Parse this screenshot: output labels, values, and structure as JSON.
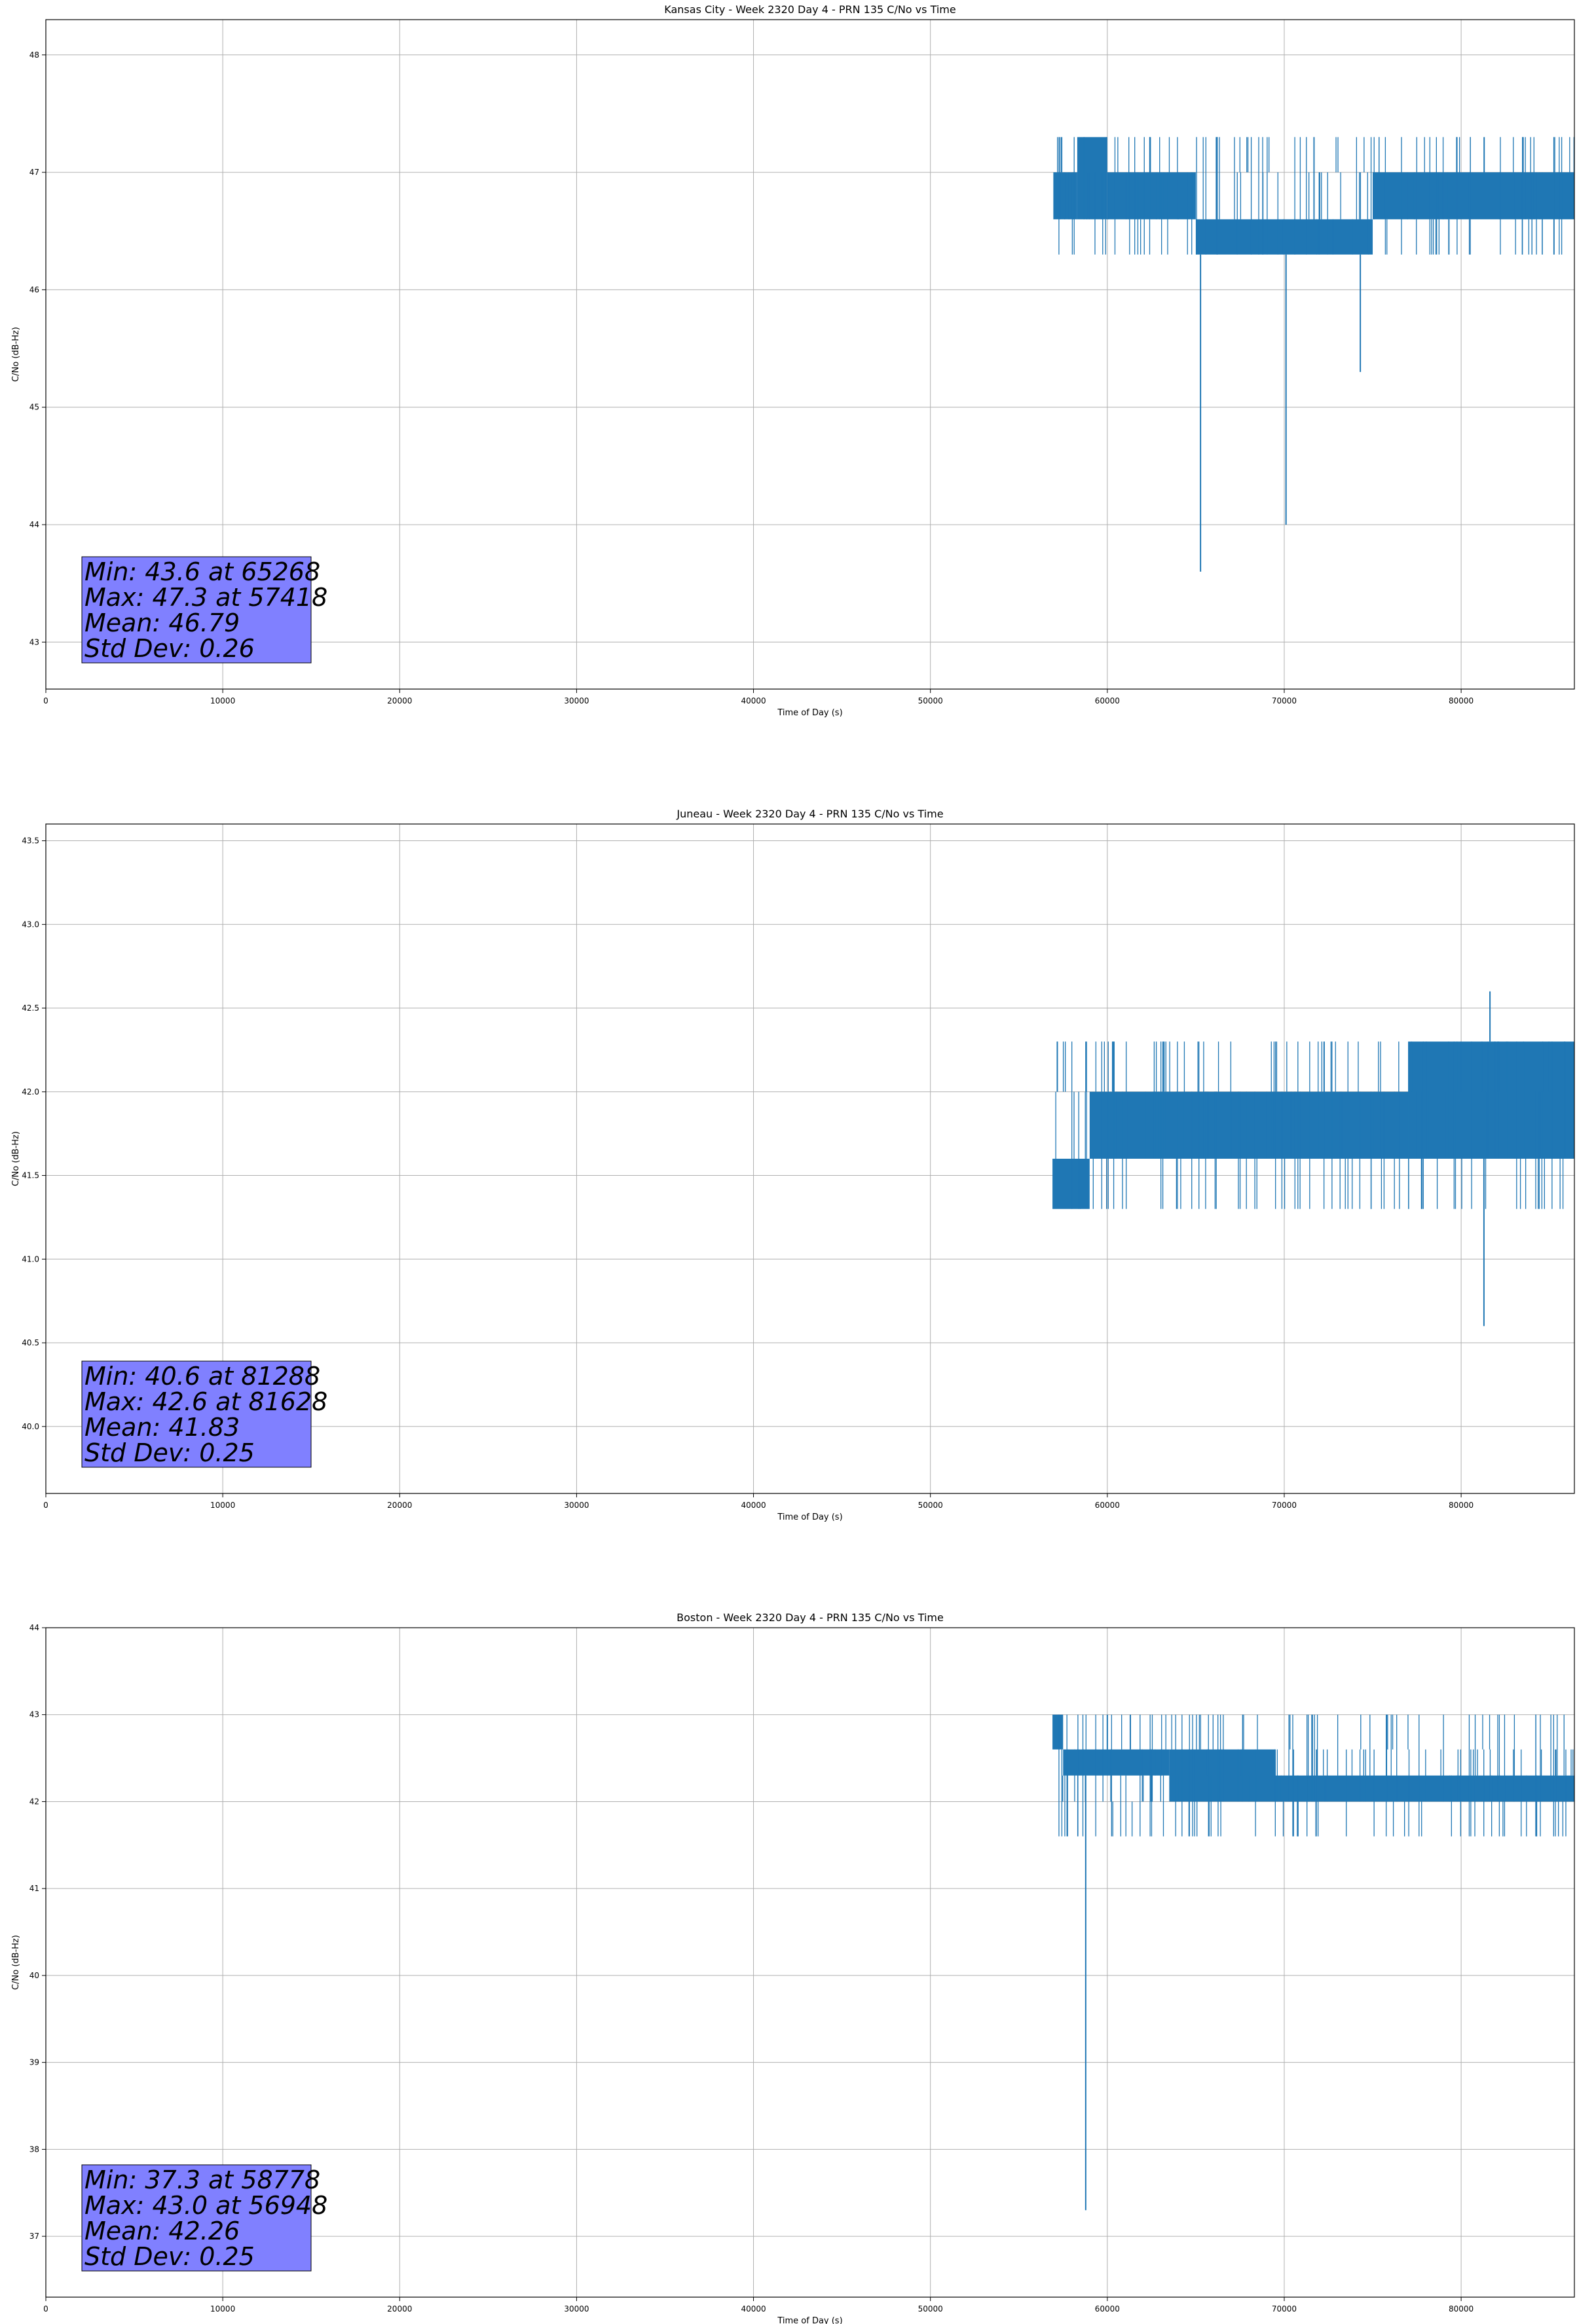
{
  "colors": {
    "series": "#1f77b4",
    "grid": "#b0b0b0",
    "stats_box": "#8080ff",
    "stats_border": "#000000"
  },
  "chart_data": [
    {
      "type": "line",
      "title": "Kansas City - Week 2320 Day 4 - PRN 135 C/No vs Time",
      "xlabel": "Time of Day (s)",
      "ylabel": "C/No (dB-Hz)",
      "xlim": [
        0,
        86400
      ],
      "ylim": [
        42.6,
        48.3
      ],
      "xticks": [
        0,
        10000,
        20000,
        30000,
        40000,
        50000,
        60000,
        70000,
        80000
      ],
      "xtick_labels": [
        "0",
        "10000",
        "20000",
        "30000",
        "40000",
        "50000",
        "60000",
        "70000",
        "80000"
      ],
      "yticks": [
        43,
        44,
        45,
        46,
        47,
        48
      ],
      "ytick_labels": [
        "43",
        "44",
        "45",
        "46",
        "47",
        "48"
      ],
      "grid": true,
      "series_start": 56948,
      "levels": [
        46.3,
        46.6,
        47.0,
        47.3
      ],
      "segments": [
        {
          "x": [
            56948,
            58300
          ],
          "upper": 47.0,
          "lower": 46.6
        },
        {
          "x": [
            58300,
            60000
          ],
          "upper": 47.3,
          "lower": 46.6
        },
        {
          "x": [
            60000,
            65000
          ],
          "upper": 47.0,
          "lower": 46.6
        },
        {
          "x": [
            65000,
            75000
          ],
          "upper": 46.6,
          "lower": 46.3
        },
        {
          "x": [
            75000,
            86400
          ],
          "upper": 47.0,
          "lower": 46.6
        }
      ],
      "spikes": [
        {
          "x": 57418,
          "y": 47.3
        },
        {
          "x": 65268,
          "y": 43.6
        },
        {
          "x": 70100,
          "y": 44.0
        },
        {
          "x": 74300,
          "y": 45.3
        },
        {
          "x": 81300,
          "y": 47.3
        },
        {
          "x": 83500,
          "y": 47.3
        }
      ],
      "stats": [
        "Min: 43.6 at 65268",
        "Max: 47.3 at 57418",
        "Mean: 46.79",
        "Std Dev: 0.26"
      ]
    },
    {
      "type": "line",
      "title": "Juneau - Week 2320 Day 4 - PRN 135 C/No vs Time",
      "xlabel": "Time of Day (s)",
      "ylabel": "C/No (dB-Hz)",
      "xlim": [
        0,
        86400
      ],
      "ylim": [
        39.6,
        43.6
      ],
      "xticks": [
        0,
        10000,
        20000,
        30000,
        40000,
        50000,
        60000,
        70000,
        80000
      ],
      "xtick_labels": [
        "0",
        "10000",
        "20000",
        "30000",
        "40000",
        "50000",
        "60000",
        "70000",
        "80000"
      ],
      "yticks": [
        40.0,
        40.5,
        41.0,
        41.5,
        42.0,
        42.5,
        43.0,
        43.5
      ],
      "ytick_labels": [
        "40.0",
        "40.5",
        "41.0",
        "41.5",
        "42.0",
        "42.5",
        "43.0",
        "43.5"
      ],
      "grid": true,
      "series_start": 56900,
      "levels": [
        41.3,
        41.6,
        42.0,
        42.3
      ],
      "segments": [
        {
          "x": [
            56900,
            59000
          ],
          "upper": 41.6,
          "lower": 41.3
        },
        {
          "x": [
            59000,
            77000
          ],
          "upper": 42.0,
          "lower": 41.6
        },
        {
          "x": [
            77000,
            86400
          ],
          "upper": 42.3,
          "lower": 41.6
        }
      ],
      "spikes": [
        {
          "x": 60300,
          "y": 42.3
        },
        {
          "x": 63200,
          "y": 42.3
        },
        {
          "x": 81288,
          "y": 40.6
        },
        {
          "x": 81628,
          "y": 42.6
        }
      ],
      "stats": [
        "Min: 40.6 at 81288",
        "Max: 42.6 at 81628",
        "Mean: 41.83",
        "Std Dev: 0.25"
      ]
    },
    {
      "type": "line",
      "title": "Boston - Week 2320 Day 4 - PRN 135 C/No vs Time",
      "xlabel": "Time of Day (s)",
      "ylabel": "C/No (dB-Hz)",
      "xlim": [
        0,
        86400
      ],
      "ylim": [
        36.3,
        44.0
      ],
      "xticks": [
        0,
        10000,
        20000,
        30000,
        40000,
        50000,
        60000,
        70000,
        80000
      ],
      "xtick_labels": [
        "0",
        "10000",
        "20000",
        "30000",
        "40000",
        "50000",
        "60000",
        "70000",
        "80000"
      ],
      "yticks": [
        37,
        38,
        39,
        40,
        41,
        42,
        43,
        44
      ],
      "ytick_labels": [
        "37",
        "38",
        "39",
        "40",
        "41",
        "42",
        "43",
        "44"
      ],
      "grid": true,
      "series_start": 56900,
      "levels": [
        41.6,
        42.0,
        42.3,
        42.6,
        43.0
      ],
      "segments": [
        {
          "x": [
            56900,
            57500
          ],
          "upper": 43.0,
          "lower": 42.6
        },
        {
          "x": [
            57500,
            63500
          ],
          "upper": 42.6,
          "lower": 42.3
        },
        {
          "x": [
            63500,
            69500
          ],
          "upper": 42.6,
          "lower": 42.0
        },
        {
          "x": [
            69500,
            86400
          ],
          "upper": 42.3,
          "lower": 42.0
        }
      ],
      "spikes": [
        {
          "x": 56948,
          "y": 43.0
        },
        {
          "x": 58778,
          "y": 37.3
        },
        {
          "x": 60000,
          "y": 43.0
        },
        {
          "x": 61300,
          "y": 43.0
        }
      ],
      "stats": [
        "Min: 37.3 at 58778",
        "Max: 43.0 at 56948",
        "Mean: 42.26",
        "Std Dev: 0.25"
      ]
    }
  ]
}
